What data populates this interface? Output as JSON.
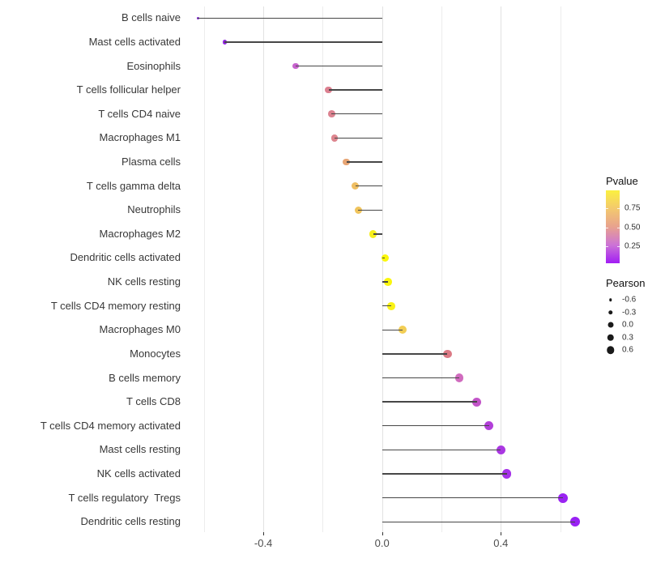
{
  "chart_data": {
    "type": "scatter",
    "variant": "lollipop",
    "title": "",
    "xlabel": "",
    "ylabel": "",
    "xlim": [
      -0.67,
      0.73
    ],
    "grid": "vertical-only",
    "x_axis": {
      "tick_values": [
        -0.4,
        0.0,
        0.4
      ],
      "tick_labels": [
        "-0.4",
        "0.0",
        "0.4"
      ],
      "gridline_values": [
        -0.6,
        -0.4,
        -0.2,
        0.0,
        0.2,
        0.4,
        0.6
      ]
    },
    "points": [
      {
        "label": "B cells naive",
        "pearson": -0.62,
        "color": "#8222d8"
      },
      {
        "label": "Mast cells activated",
        "pearson": -0.53,
        "color": "#9328e2"
      },
      {
        "label": "Eosinophils",
        "pearson": -0.29,
        "color": "#c763ce"
      },
      {
        "label": "T cells follicular helper",
        "pearson": -0.18,
        "color": "#dc8090"
      },
      {
        "label": "T cells CD4 naive",
        "pearson": -0.17,
        "color": "#dc8290"
      },
      {
        "label": "Macrophages M1",
        "pearson": -0.16,
        "color": "#dd858e"
      },
      {
        "label": "Plasma cells",
        "pearson": -0.12,
        "color": "#e7a574"
      },
      {
        "label": "T cells gamma delta",
        "pearson": -0.09,
        "color": "#efbe62"
      },
      {
        "label": "Neutrophils",
        "pearson": -0.08,
        "color": "#f0c45c"
      },
      {
        "label": "Macrophages M2",
        "pearson": -0.03,
        "color": "#f7ef1c"
      },
      {
        "label": "Dendritic cells activated",
        "pearson": 0.01,
        "color": "#fbf70a"
      },
      {
        "label": "NK cells resting",
        "pearson": 0.02,
        "color": "#faf60d"
      },
      {
        "label": "T cells CD4 memory resting",
        "pearson": 0.03,
        "color": "#f9f215"
      },
      {
        "label": "Macrophages M0",
        "pearson": 0.07,
        "color": "#f2ce55"
      },
      {
        "label": "Monocytes",
        "pearson": 0.22,
        "color": "#db7a85"
      },
      {
        "label": "B cells memory",
        "pearson": 0.26,
        "color": "#d06bbe"
      },
      {
        "label": "T cells CD8",
        "pearson": 0.32,
        "color": "#c254c8"
      },
      {
        "label": "T cells CD4 memory activated",
        "pearson": 0.36,
        "color": "#b23fd9"
      },
      {
        "label": "Mast cells resting",
        "pearson": 0.4,
        "color": "#aa37e2"
      },
      {
        "label": "NK cells activated",
        "pearson": 0.42,
        "color": "#a531e8"
      },
      {
        "label": "T cells regulatory  Tregs",
        "pearson": 0.61,
        "color": "#9a23f2"
      },
      {
        "label": "Dendritic cells resting",
        "pearson": 0.65,
        "color": "#9921f4"
      }
    ],
    "legend_pvalue": {
      "title": "Pvalue",
      "position": "right",
      "labels": [
        "0.75",
        "0.50",
        "0.25"
      ],
      "label_values": [
        0.75,
        0.5,
        0.25
      ],
      "gradient_top_to_bottom": [
        "#fbf040",
        "#f3c96e",
        "#e8a28e",
        "#cc73d6",
        "#a11df4"
      ]
    },
    "legend_pearson": {
      "title": "Pearson",
      "position": "right",
      "entries": [
        {
          "label": "-0.6",
          "size": 3.5
        },
        {
          "label": "-0.3",
          "size": 5.5
        },
        {
          "label": "0.0",
          "size": 7.0
        },
        {
          "label": "0.3",
          "size": 8.5
        },
        {
          "label": "0.6",
          "size": 9.5
        }
      ]
    }
  }
}
